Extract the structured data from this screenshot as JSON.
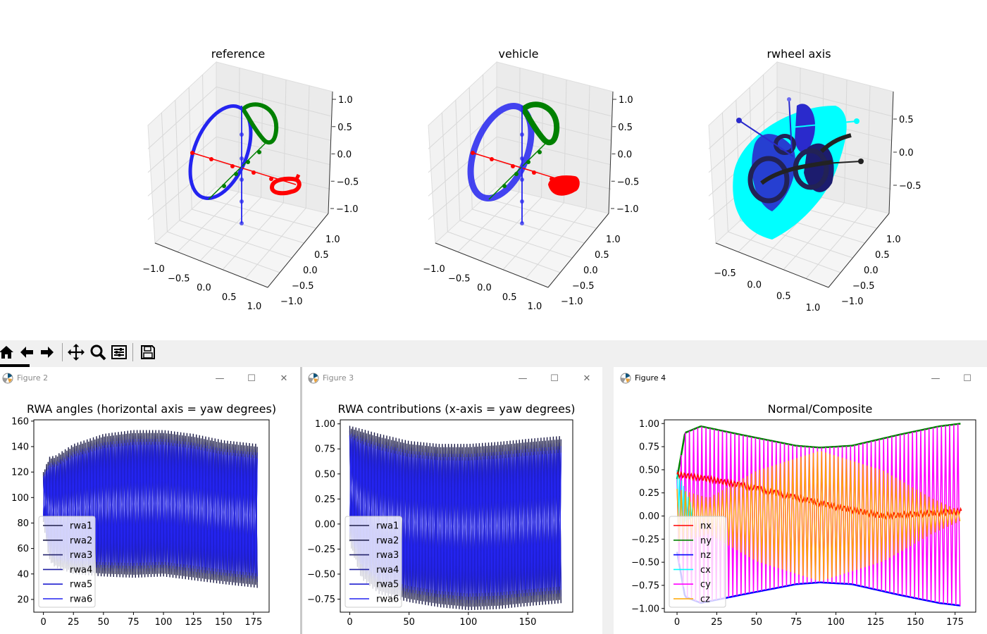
{
  "figure1": {
    "panels": [
      {
        "title": "reference",
        "z_ticks": [
          "1.0",
          "0.5",
          "0.0",
          "−0.5",
          "−1.0"
        ],
        "x_ticks": [
          "−1.0",
          "−0.5",
          "0.0",
          "0.5",
          "1.0"
        ],
        "y_ticks": [
          "1.0",
          "0.5",
          "0.0",
          "−0.5",
          "−1.0"
        ]
      },
      {
        "title": "vehicle",
        "z_ticks": [
          "1.0",
          "0.5",
          "0.0",
          "−0.5",
          "−1.0"
        ],
        "x_ticks": [
          "−1.0",
          "−0.5",
          "0.0",
          "0.5",
          "1.0"
        ],
        "y_ticks": [
          "1.0",
          "0.5",
          "0.0",
          "−0.5",
          "−1.0"
        ]
      },
      {
        "title": "rwheel axis",
        "z_ticks": [
          "0.5",
          "0.0",
          "−0.5"
        ],
        "x_ticks": [
          "−0.5",
          "0.0",
          "0.5",
          "1.0"
        ],
        "y_ticks": [
          "1.0",
          "0.5",
          "0.0",
          "−0.5",
          "−1.0"
        ]
      }
    ]
  },
  "toolbar": {
    "items": [
      {
        "name": "home-button",
        "icon": "home-icon"
      },
      {
        "name": "back-button",
        "icon": "arrow-left-icon"
      },
      {
        "name": "forward-button",
        "icon": "arrow-right-icon"
      },
      {
        "name": "pan-button",
        "icon": "move-icon"
      },
      {
        "name": "zoom-button",
        "icon": "magnifier-icon"
      },
      {
        "name": "configure-subplots-button",
        "icon": "sliders-icon"
      },
      {
        "name": "save-button",
        "icon": "floppy-disk-icon"
      }
    ]
  },
  "windows": {
    "figure2": {
      "title": "Figure 2"
    },
    "figure3": {
      "title": "Figure 3"
    },
    "figure4": {
      "title": "Figure 4"
    }
  },
  "colors": {
    "dark_navy": "#1f1f4a",
    "blue": "#2424f0",
    "red": "#ff0000",
    "green": "#008000",
    "cyan": "#00ffff",
    "magenta": "#ff00ff",
    "orange": "#ffa500"
  },
  "chart_data": [
    {
      "id": "rwa-angles",
      "type": "line",
      "title": "RWA angles (horizontal axis = yaw degrees)",
      "xlabel": "",
      "ylabel": "",
      "xlim": [
        -8,
        188
      ],
      "ylim": [
        10,
        161
      ],
      "xticks": [
        0,
        25,
        50,
        75,
        100,
        125,
        150,
        175
      ],
      "yticks": [
        20,
        40,
        60,
        80,
        100,
        120,
        140,
        160
      ],
      "legend_position": "lower left",
      "series": [
        {
          "name": "rwa1",
          "color": "#1f1f4a"
        },
        {
          "name": "rwa2",
          "color": "#25254f"
        },
        {
          "name": "rwa3",
          "color": "#23236c"
        },
        {
          "name": "rwa4",
          "color": "#1f1fa0"
        },
        {
          "name": "rwa5",
          "color": "#1f1fd0"
        },
        {
          "name": "rwa6",
          "color": "#2424f0"
        }
      ],
      "x_range": [
        0,
        179
      ],
      "upper_envelope": [
        [
          0,
          120
        ],
        [
          5,
          132
        ],
        [
          10,
          133
        ],
        [
          25,
          142
        ],
        [
          50,
          150
        ],
        [
          75,
          153
        ],
        [
          100,
          153
        ],
        [
          125,
          150
        ],
        [
          150,
          145
        ],
        [
          179,
          142
        ]
      ],
      "lower_envelope": [
        [
          0,
          80
        ],
        [
          5,
          50
        ],
        [
          10,
          45
        ],
        [
          25,
          40
        ],
        [
          50,
          38
        ],
        [
          75,
          37
        ],
        [
          100,
          38
        ],
        [
          125,
          35
        ],
        [
          150,
          32
        ],
        [
          179,
          29
        ]
      ]
    },
    {
      "id": "rwa-contributions",
      "type": "line",
      "title": "RWA contributions (x-axis = yaw degrees)",
      "xlabel": "",
      "ylabel": "",
      "xlim": [
        -8,
        188
      ],
      "ylim": [
        -0.88,
        1.04
      ],
      "xticks": [
        0,
        50,
        100,
        150
      ],
      "yticks": [
        -0.75,
        -0.5,
        -0.25,
        0.0,
        0.25,
        0.5,
        0.75,
        1.0
      ],
      "legend_position": "lower left",
      "series": [
        {
          "name": "rwa1",
          "color": "#1f1f4a"
        },
        {
          "name": "rwa2",
          "color": "#25254f"
        },
        {
          "name": "rwa3",
          "color": "#23236c"
        },
        {
          "name": "rwa4",
          "color": "#1f1fa0"
        },
        {
          "name": "rwa5",
          "color": "#1f1fd0"
        },
        {
          "name": "rwa6",
          "color": "#2424f0"
        }
      ],
      "x_range": [
        0,
        179
      ],
      "upper_envelope": [
        [
          0,
          0.98
        ],
        [
          10,
          0.95
        ],
        [
          25,
          0.9
        ],
        [
          50,
          0.83
        ],
        [
          75,
          0.8
        ],
        [
          100,
          0.8
        ],
        [
          125,
          0.82
        ],
        [
          150,
          0.85
        ],
        [
          179,
          0.88
        ]
      ],
      "lower_envelope": [
        [
          0,
          -0.2
        ],
        [
          10,
          -0.55
        ],
        [
          25,
          -0.7
        ],
        [
          50,
          -0.78
        ],
        [
          75,
          -0.83
        ],
        [
          100,
          -0.86
        ],
        [
          125,
          -0.85
        ],
        [
          150,
          -0.82
        ],
        [
          179,
          -0.79
        ]
      ]
    },
    {
      "id": "normal-composite",
      "type": "line",
      "title": "Normal/Composite",
      "xlabel": "",
      "ylabel": "",
      "xlim": [
        -8,
        188
      ],
      "ylim": [
        -1.04,
        1.04
      ],
      "xticks": [
        0,
        25,
        50,
        75,
        100,
        125,
        150,
        175
      ],
      "yticks": [
        -1.0,
        -0.75,
        -0.5,
        -0.25,
        0.0,
        0.25,
        0.5,
        0.75,
        1.0
      ],
      "legend_position": "lower left",
      "series": [
        {
          "name": "nx",
          "color": "#ff0000"
        },
        {
          "name": "ny",
          "color": "#008000"
        },
        {
          "name": "nz",
          "color": "#0000ff"
        },
        {
          "name": "cx",
          "color": "#00ffff"
        },
        {
          "name": "cy",
          "color": "#ff00ff"
        },
        {
          "name": "cz",
          "color": "#ffa500"
        }
      ],
      "x_range": [
        0,
        179
      ],
      "cy_amplitude": [
        [
          0,
          0.4
        ],
        [
          5,
          0.9
        ],
        [
          15,
          0.97
        ],
        [
          40,
          0.88
        ],
        [
          75,
          0.76
        ],
        [
          90,
          0.74
        ],
        [
          110,
          0.76
        ],
        [
          140,
          0.88
        ],
        [
          165,
          0.97
        ],
        [
          179,
          1.0
        ]
      ],
      "cz_amplitude": [
        [
          0,
          0.3
        ],
        [
          20,
          0.2
        ],
        [
          50,
          0.5
        ],
        [
          90,
          0.72
        ],
        [
          130,
          0.5
        ],
        [
          160,
          0.2
        ],
        [
          179,
          0.05
        ]
      ],
      "nx_curve": [
        [
          0,
          0.45
        ],
        [
          20,
          0.4
        ],
        [
          50,
          0.3
        ],
        [
          75,
          0.2
        ],
        [
          100,
          0.1
        ],
        [
          130,
          0.0
        ],
        [
          179,
          0.05
        ]
      ]
    }
  ]
}
